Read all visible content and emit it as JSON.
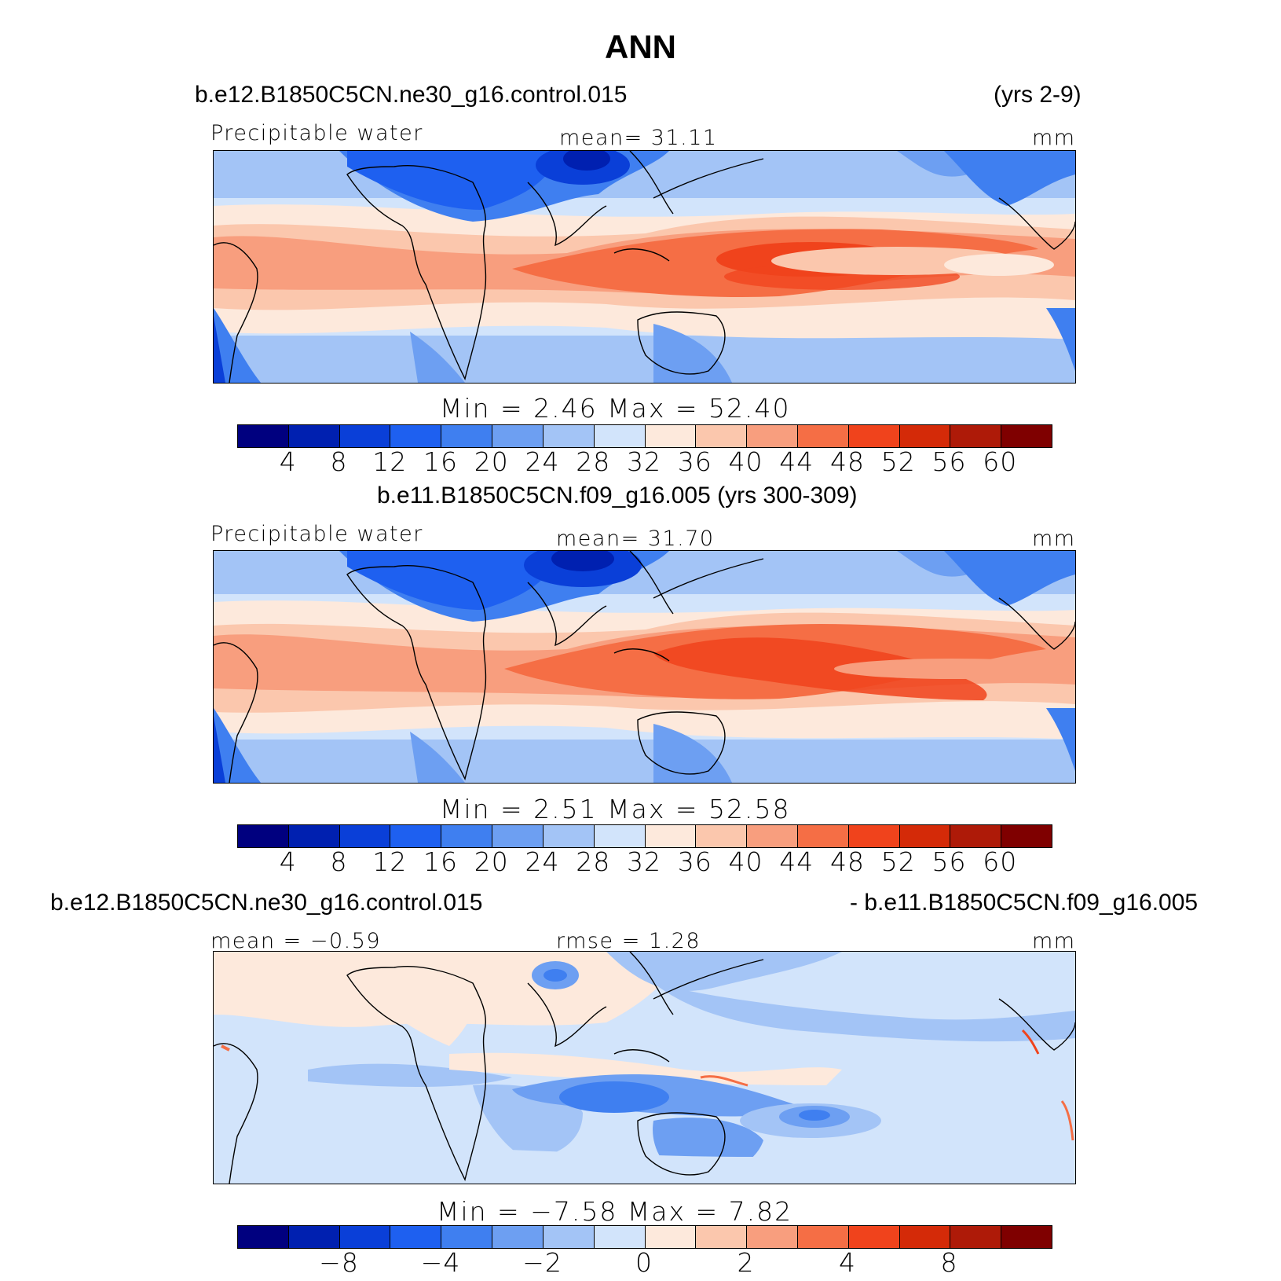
{
  "title": "ANN",
  "panels": [
    {
      "case": "b.e12.B1850C5CN.ne30_g16.control.015",
      "years": "(yrs 2-9)",
      "left_label": "Precipitable water",
      "center_label": "mean=  31.11",
      "units": "mm",
      "minmax": "Min =    2.46  Max =   52.40",
      "colorbar": {
        "colors": [
          "#00007f",
          "#0020b0",
          "#0a3fd8",
          "#1e60f0",
          "#3f7ff0",
          "#6d9ff2",
          "#a3c4f6",
          "#d2e4fb",
          "#fde9dc",
          "#fbc7ad",
          "#f89e7e",
          "#f56e45",
          "#f0431c",
          "#d42a08",
          "#ae1a08",
          "#7f0000"
        ],
        "ticks": [
          "4",
          "8",
          "12",
          "16",
          "20",
          "24",
          "28",
          "32",
          "36",
          "40",
          "44",
          "48",
          "52",
          "56",
          "60"
        ]
      }
    },
    {
      "case": "b.e11.B1850C5CN.f09_g16.005 (yrs 300-309)",
      "years": "",
      "left_label": "Precipitable water",
      "center_label": "mean=  31.70",
      "units": "mm",
      "minmax": "Min =    2.51  Max =   52.58",
      "colorbar": {
        "colors": [
          "#00007f",
          "#0020b0",
          "#0a3fd8",
          "#1e60f0",
          "#3f7ff0",
          "#6d9ff2",
          "#a3c4f6",
          "#d2e4fb",
          "#fde9dc",
          "#fbc7ad",
          "#f89e7e",
          "#f56e45",
          "#f0431c",
          "#d42a08",
          "#ae1a08",
          "#7f0000"
        ],
        "ticks": [
          "4",
          "8",
          "12",
          "16",
          "20",
          "24",
          "28",
          "32",
          "36",
          "40",
          "44",
          "48",
          "52",
          "56",
          "60"
        ]
      }
    },
    {
      "case": "b.e12.B1850C5CN.ne30_g16.control.015",
      "years": "- b.e11.B1850C5CN.f09_g16.005",
      "left_label": "mean =  −0.59",
      "center_label": "rmse =   1.28",
      "units": "mm",
      "minmax": "Min =  −7.58  Max =    7.82",
      "colorbar": {
        "colors": [
          "#00007f",
          "#0020b0",
          "#0a3fd8",
          "#1e60f0",
          "#3f7ff0",
          "#6d9ff2",
          "#a3c4f6",
          "#d2e4fb",
          "#fde9dc",
          "#fbc7ad",
          "#f89e7e",
          "#f56e45",
          "#f0431c",
          "#d42a08",
          "#ae1a08",
          "#7f0000"
        ],
        "ticks": [
          "−8",
          "−4",
          "−2",
          "0",
          "2",
          "4",
          "8"
        ]
      }
    }
  ]
}
